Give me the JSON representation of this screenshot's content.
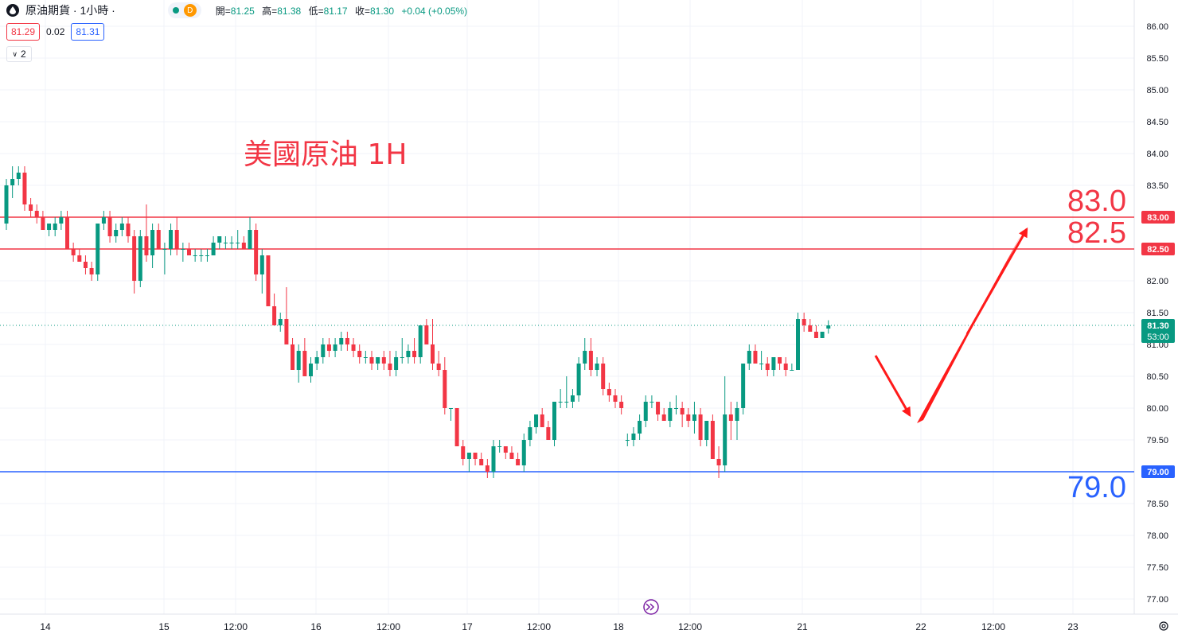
{
  "header": {
    "title": "原油期貨 · 1小時 ·",
    "badge": "D",
    "ohlc": [
      {
        "label": "開=",
        "value": "81.25"
      },
      {
        "label": "高=",
        "value": "81.38"
      },
      {
        "label": "低=",
        "value": "81.17"
      },
      {
        "label": "收=",
        "value": "81.30"
      },
      {
        "label": "",
        "value": "+0.04 (+0.05%)"
      }
    ],
    "sell_price": "81.29",
    "spread": "0.02",
    "buy_price": "81.31",
    "indicators_count": "2"
  },
  "chart_data": {
    "type": "candlestick",
    "title": "美國原油 1H",
    "ylim": [
      76.75,
      86.25
    ],
    "y_ticks": [
      86.0,
      85.5,
      85.0,
      84.5,
      84.0,
      83.5,
      83.0,
      82.5,
      82.0,
      81.5,
      81.0,
      80.5,
      80.0,
      79.5,
      79.0,
      78.5,
      78.0,
      77.5,
      77.0
    ],
    "x_ticks": [
      "14",
      "15",
      "12:00",
      "16",
      "12:00",
      "17",
      "12:00",
      "18",
      "12:00",
      "21",
      "22",
      "12:00",
      "23"
    ],
    "current_price": {
      "value": "81.30",
      "countdown": "53:00"
    },
    "levels": [
      {
        "value": 83.0,
        "axis_label": "83.00",
        "label": "83.0",
        "color": "#f23645"
      },
      {
        "value": 82.5,
        "axis_label": "82.50",
        "label": "82.5",
        "color": "#f23645"
      },
      {
        "value": 79.0,
        "axis_label": "79.00",
        "label": "79.0",
        "color": "#2962ff"
      }
    ],
    "projection": [
      {
        "time": "21 ~02:00",
        "price": 81.3
      },
      {
        "time": "22 ~00:00",
        "price": 79.8
      },
      {
        "time": "22 ~18:00",
        "price": 82.9
      }
    ],
    "candles_ohlc": [
      [
        82.9,
        83.6,
        82.8,
        83.5
      ],
      [
        83.5,
        83.8,
        83.3,
        83.6
      ],
      [
        83.6,
        83.8,
        83.5,
        83.7
      ],
      [
        83.7,
        83.8,
        83.1,
        83.2
      ],
      [
        83.2,
        83.3,
        83.0,
        83.1
      ],
      [
        83.1,
        83.2,
        82.9,
        83.0
      ],
      [
        83.0,
        83.1,
        82.8,
        82.8
      ],
      [
        82.8,
        82.9,
        82.7,
        82.9
      ],
      [
        82.8,
        83.0,
        82.7,
        82.9
      ],
      [
        82.9,
        83.1,
        82.8,
        83.0
      ],
      [
        83.0,
        83.1,
        82.5,
        82.5
      ],
      [
        82.5,
        82.6,
        82.3,
        82.4
      ],
      [
        82.4,
        82.5,
        82.3,
        82.3
      ],
      [
        82.3,
        82.4,
        82.1,
        82.2
      ],
      [
        82.2,
        82.3,
        82.0,
        82.1
      ],
      [
        82.1,
        82.9,
        82.0,
        82.9
      ],
      [
        82.9,
        83.1,
        82.8,
        83.0
      ],
      [
        83.0,
        83.1,
        82.6,
        82.7
      ],
      [
        82.7,
        82.9,
        82.6,
        82.8
      ],
      [
        82.8,
        83.0,
        82.7,
        82.9
      ],
      [
        82.9,
        83.0,
        82.6,
        82.7
      ],
      [
        82.7,
        82.8,
        81.8,
        82.0
      ],
      [
        82.0,
        82.8,
        81.9,
        82.7
      ],
      [
        82.7,
        83.2,
        82.3,
        82.4
      ],
      [
        82.4,
        82.9,
        82.2,
        82.8
      ],
      [
        82.8,
        82.9,
        82.5,
        82.5
      ],
      [
        82.5,
        82.6,
        82.1,
        82.5
      ],
      [
        82.5,
        82.9,
        82.4,
        82.8
      ],
      [
        82.8,
        83.0,
        82.4,
        82.5
      ],
      [
        82.5,
        82.6,
        82.3,
        82.5
      ],
      [
        82.5,
        82.6,
        82.4,
        82.4
      ],
      [
        82.4,
        82.5,
        82.3,
        82.4
      ],
      [
        82.4,
        82.5,
        82.3,
        82.4
      ],
      [
        82.4,
        82.5,
        82.3,
        82.4
      ],
      [
        82.4,
        82.7,
        82.4,
        82.6
      ],
      [
        82.6,
        82.7,
        82.5,
        82.7
      ],
      [
        82.6,
        82.7,
        82.5,
        82.6
      ],
      [
        82.6,
        82.7,
        82.5,
        82.6
      ],
      [
        82.6,
        82.8,
        82.5,
        82.6
      ],
      [
        82.6,
        82.7,
        82.5,
        82.5
      ],
      [
        82.5,
        83.0,
        82.5,
        82.8
      ],
      [
        82.8,
        82.9,
        82.0,
        82.1
      ],
      [
        82.1,
        82.5,
        81.8,
        82.4
      ],
      [
        82.4,
        82.4,
        81.6,
        81.6
      ],
      [
        81.6,
        81.8,
        81.3,
        81.3
      ],
      [
        81.3,
        81.5,
        81.2,
        81.4
      ],
      [
        81.4,
        81.9,
        81.0,
        81.0
      ],
      [
        81.0,
        81.1,
        80.6,
        80.6
      ],
      [
        80.6,
        81.0,
        80.4,
        80.9
      ],
      [
        80.9,
        81.1,
        80.5,
        80.5
      ],
      [
        80.5,
        80.8,
        80.4,
        80.7
      ],
      [
        80.7,
        80.9,
        80.6,
        80.8
      ],
      [
        80.8,
        81.1,
        80.7,
        81.0
      ],
      [
        81.0,
        81.1,
        80.8,
        80.9
      ],
      [
        80.9,
        81.1,
        80.8,
        81.0
      ],
      [
        81.0,
        81.2,
        80.9,
        81.1
      ],
      [
        81.1,
        81.2,
        80.9,
        81.0
      ],
      [
        81.0,
        81.1,
        80.8,
        80.9
      ],
      [
        80.9,
        81.0,
        80.7,
        80.8
      ],
      [
        80.8,
        80.9,
        80.7,
        80.8
      ],
      [
        80.8,
        80.9,
        80.6,
        80.7
      ],
      [
        80.7,
        80.8,
        80.6,
        80.8
      ],
      [
        80.8,
        80.9,
        80.6,
        80.7
      ],
      [
        80.7,
        80.9,
        80.5,
        80.6
      ],
      [
        80.6,
        80.9,
        80.5,
        80.8
      ],
      [
        80.8,
        81.1,
        80.7,
        80.8
      ],
      [
        80.8,
        81.0,
        80.7,
        80.9
      ],
      [
        80.9,
        81.1,
        80.7,
        80.8
      ],
      [
        80.8,
        81.3,
        80.7,
        81.3
      ],
      [
        81.3,
        81.4,
        81.0,
        81.0
      ],
      [
        81.0,
        81.4,
        80.6,
        80.7
      ],
      [
        80.7,
        80.9,
        80.5,
        80.6
      ],
      [
        80.6,
        80.8,
        79.9,
        80.0
      ],
      [
        80.0,
        80.0,
        79.8,
        80.0
      ],
      [
        80.0,
        80.0,
        79.4,
        79.4
      ],
      [
        79.4,
        79.5,
        79.1,
        79.2
      ],
      [
        79.2,
        79.3,
        79.0,
        79.3
      ],
      [
        79.3,
        79.3,
        79.1,
        79.2
      ],
      [
        79.2,
        79.3,
        79.1,
        79.1
      ],
      [
        79.1,
        79.2,
        78.9,
        79.0
      ],
      [
        79.0,
        79.5,
        78.9,
        79.4
      ],
      [
        79.4,
        79.5,
        79.3,
        79.4
      ],
      [
        79.4,
        79.4,
        79.2,
        79.3
      ],
      [
        79.3,
        79.4,
        79.2,
        79.2
      ],
      [
        79.2,
        79.3,
        79.1,
        79.1
      ],
      [
        79.1,
        79.6,
        79.0,
        79.5
      ],
      [
        79.5,
        79.8,
        79.4,
        79.7
      ],
      [
        79.7,
        79.9,
        79.6,
        79.9
      ],
      [
        79.9,
        80.0,
        79.7,
        79.7
      ],
      [
        79.7,
        79.8,
        79.5,
        79.5
      ],
      [
        79.5,
        80.1,
        79.4,
        80.1
      ],
      [
        80.1,
        80.3,
        80.0,
        80.1
      ],
      [
        80.1,
        80.5,
        80.0,
        80.1
      ],
      [
        80.1,
        80.3,
        80.0,
        80.2
      ],
      [
        80.2,
        80.8,
        80.1,
        80.7
      ],
      [
        80.7,
        81.1,
        80.6,
        80.9
      ],
      [
        80.9,
        81.1,
        80.5,
        80.6
      ],
      [
        80.6,
        80.8,
        80.5,
        80.7
      ],
      [
        80.7,
        80.8,
        80.2,
        80.3
      ],
      [
        80.3,
        80.4,
        80.1,
        80.2
      ],
      [
        80.2,
        80.3,
        80.0,
        80.1
      ],
      [
        80.1,
        80.2,
        79.9,
        80.0
      ],
      [
        79.5,
        79.6,
        79.4,
        79.5
      ],
      [
        79.5,
        79.7,
        79.4,
        79.6
      ],
      [
        79.6,
        79.9,
        79.5,
        79.8
      ],
      [
        79.8,
        80.2,
        79.7,
        80.1
      ],
      [
        80.1,
        80.2,
        80.0,
        80.1
      ],
      [
        80.1,
        80.1,
        79.8,
        79.9
      ],
      [
        79.9,
        80.0,
        79.8,
        79.8
      ],
      [
        79.8,
        80.1,
        79.7,
        80.0
      ],
      [
        80.0,
        80.2,
        79.9,
        80.0
      ],
      [
        80.0,
        80.1,
        79.7,
        79.9
      ],
      [
        79.9,
        80.0,
        79.7,
        79.8
      ],
      [
        79.8,
        80.1,
        79.6,
        79.9
      ],
      [
        79.9,
        80.0,
        79.4,
        79.5
      ],
      [
        79.5,
        79.8,
        79.4,
        79.8
      ],
      [
        79.8,
        79.9,
        79.2,
        79.2
      ],
      [
        79.2,
        79.4,
        78.9,
        79.1
      ],
      [
        79.1,
        80.5,
        79.0,
        79.9
      ],
      [
        79.9,
        80.1,
        79.5,
        79.8
      ],
      [
        79.8,
        80.1,
        79.5,
        80.0
      ],
      [
        80.0,
        80.7,
        79.9,
        80.7
      ],
      [
        80.7,
        81.0,
        80.6,
        80.9
      ],
      [
        80.9,
        81.0,
        80.7,
        80.7
      ],
      [
        80.7,
        80.9,
        80.6,
        80.7
      ],
      [
        80.7,
        80.8,
        80.5,
        80.6
      ],
      [
        80.6,
        80.8,
        80.5,
        80.8
      ],
      [
        80.8,
        80.8,
        80.6,
        80.7
      ],
      [
        80.7,
        80.8,
        80.5,
        80.6
      ],
      [
        80.6,
        80.7,
        80.6,
        80.6
      ],
      [
        80.6,
        81.5,
        80.6,
        81.4
      ],
      [
        81.4,
        81.5,
        81.2,
        81.3
      ],
      [
        81.3,
        81.4,
        81.2,
        81.2
      ],
      [
        81.2,
        81.3,
        81.1,
        81.1
      ],
      [
        81.1,
        81.2,
        81.1,
        81.2
      ],
      [
        81.25,
        81.38,
        81.17,
        81.3
      ]
    ]
  }
}
